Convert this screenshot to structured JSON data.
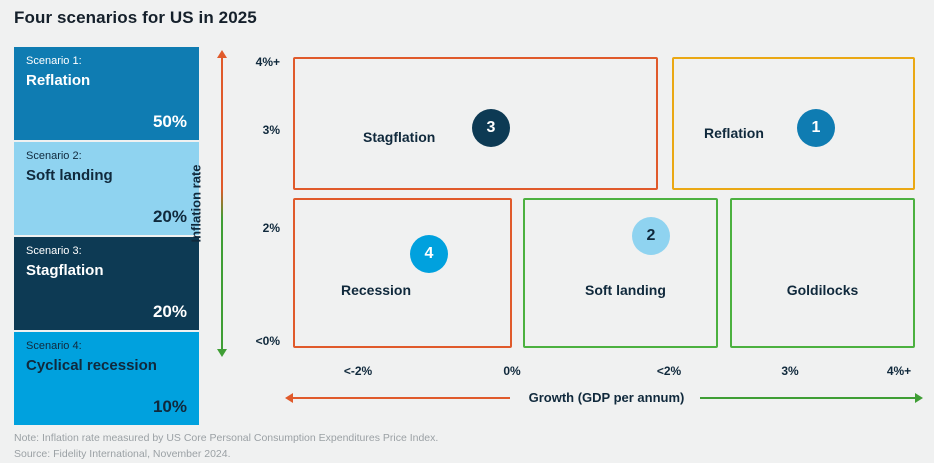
{
  "page": {
    "title": "Four scenarios for US in 2025",
    "note": "Note: Inflation rate measured by US Core Personal Consumption Expenditures Price Index.",
    "source": "Source: Fidelity International, November 2024.",
    "background": "#f0f1f1"
  },
  "colors": {
    "navy": "#0d3a54",
    "medium_blue": "#0f7cb2",
    "light_blue": "#8fd3f0",
    "cyan": "#00a1de",
    "orange_border": "#e05a2b",
    "amber_border": "#eaa814",
    "green_border": "#4cb140",
    "axis_red": "#e05a2b",
    "axis_green": "#3f9e35",
    "text_dark": "#10293c",
    "muted_text": "#9ba1a5"
  },
  "scenarios": [
    {
      "label": "Scenario 1:",
      "name": "Reflation",
      "probability": "50%",
      "bg": "#0f7cb2",
      "text": "#ffffff"
    },
    {
      "label": "Scenario 2:",
      "name": "Soft landing",
      "probability": "20%",
      "bg": "#8fd3f0",
      "text": "#10293c"
    },
    {
      "label": "Scenario 3:",
      "name": "Stagflation",
      "probability": "20%",
      "bg": "#0d3a54",
      "text": "#ffffff"
    },
    {
      "label": "Scenario 4:",
      "name": "Cyclical recession",
      "probability": "10%",
      "bg": "#00a1de",
      "text": "#10293c"
    }
  ],
  "chart_data": {
    "type": "scatter",
    "subtype": "quadrant-scenario-map",
    "title": "Four scenarios for US in 2025",
    "x_axis": {
      "label": "Growth (GDP per annum)",
      "ticks": [
        "<-2%",
        "0%",
        "<2%",
        "3%",
        "4%+"
      ]
    },
    "y_axis": {
      "label": "Inflation rate",
      "ticks": [
        "4%+",
        "3%",
        "2%",
        "<0%"
      ]
    },
    "legend_position": "none",
    "grid": false,
    "regions": [
      {
        "name": "Stagflation",
        "scenario_number": "3",
        "probability": "20%",
        "growth_range": "<-2% to 0%",
        "inflation_range": "3% to 4%+",
        "border_color": "#e05a2b",
        "marker_color": "#0d3a54"
      },
      {
        "name": "Reflation",
        "scenario_number": "1",
        "probability": "50%",
        "growth_range": "3% to 4%+",
        "inflation_range": "3% to 4%+",
        "border_color": "#eaa814",
        "marker_color": "#0f7cb2"
      },
      {
        "name": "Recession",
        "scenario_number": "4",
        "probability": "10%",
        "growth_range": "<-2% to 0%",
        "inflation_range": "<0% to 2%",
        "border_color": "#e05a2b",
        "marker_color": "#00a1de"
      },
      {
        "name": "Soft landing",
        "scenario_number": "2",
        "probability": "20%",
        "growth_range": "0% to <2%",
        "inflation_range": "<0% to 2%",
        "border_color": "#4cb140",
        "marker_color": "#8fd3f0"
      },
      {
        "name": "Goldilocks",
        "scenario_number": "",
        "probability": "",
        "growth_range": "<2% to 4%+",
        "inflation_range": "<0% to 2%",
        "border_color": "#4cb140",
        "marker_color": ""
      }
    ]
  }
}
